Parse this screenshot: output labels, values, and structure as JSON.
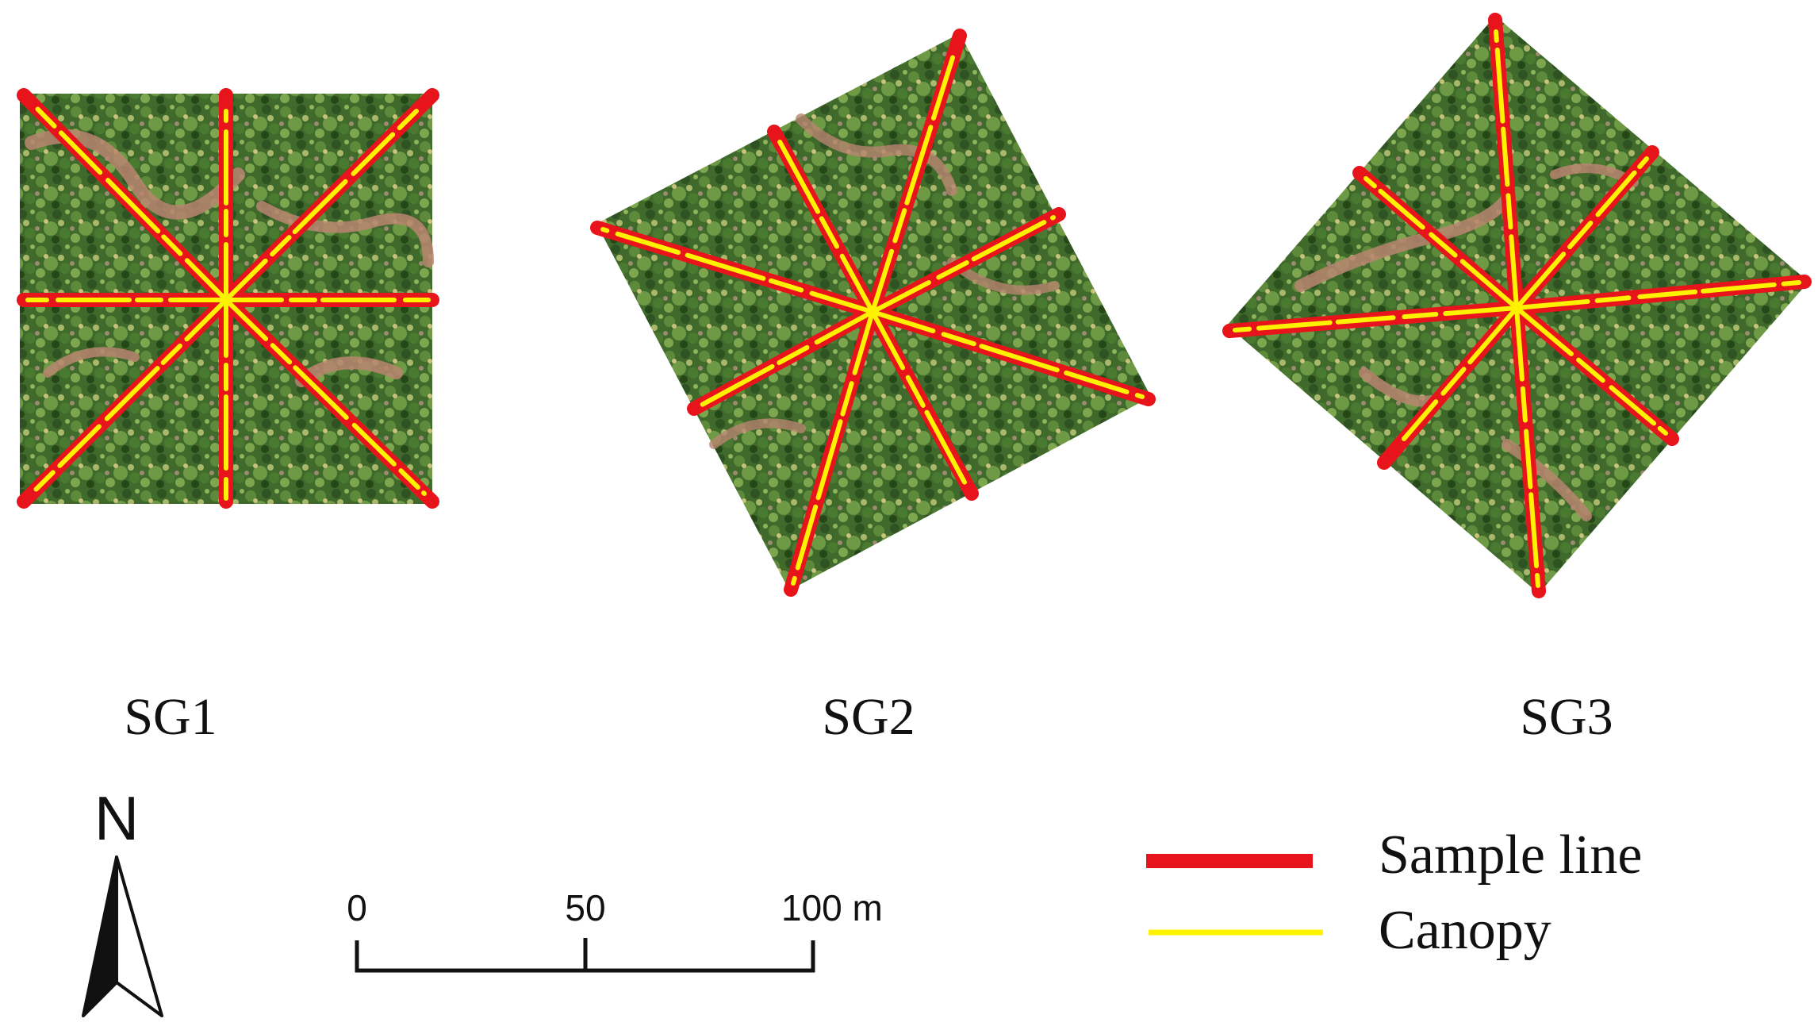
{
  "plots": [
    {
      "label": "SG1",
      "transect_count": 8
    },
    {
      "label": "SG2",
      "transect_count": 8
    },
    {
      "label": "SG3",
      "transect_count": 8
    }
  ],
  "north_arrow": {
    "label": "N"
  },
  "scale_bar": {
    "ticks": [
      "0",
      "50",
      "100 m"
    ]
  },
  "legend": {
    "items": [
      {
        "label": "Sample line",
        "color": "#e8141b"
      },
      {
        "label": "Canopy",
        "color": "#fff200"
      }
    ]
  },
  "colors": {
    "forest": "#3f6a2c",
    "bare_soil": "#b88570",
    "sample_line": "#e8141b",
    "canopy": "#fff200"
  }
}
